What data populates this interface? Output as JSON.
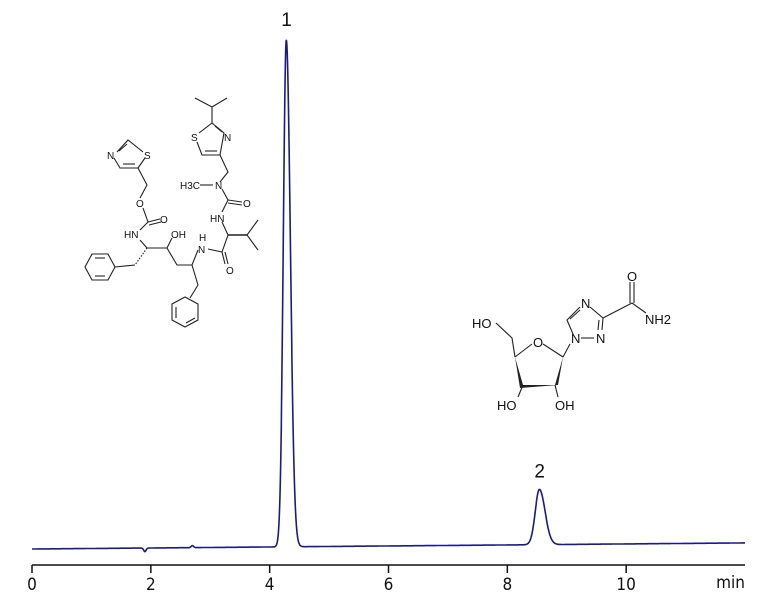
{
  "chart_data": {
    "type": "line",
    "title": "",
    "xlabel": "min",
    "ylabel": "",
    "xlim": [
      0,
      12
    ],
    "x_ticks": [
      0,
      2,
      4,
      6,
      8,
      10
    ],
    "x_tick_labels": [
      "0",
      "2",
      "4",
      "6",
      "8",
      "10"
    ],
    "y_axis_shown": false,
    "grid": false,
    "line_color": "#1a1a8c",
    "baseline": {
      "start": 0.0,
      "end": 1.2
    },
    "peaks": [
      {
        "label": "1",
        "retention_time": 4.28,
        "height": 100,
        "compound": "ritonavir"
      },
      {
        "label": "2",
        "retention_time": 8.54,
        "height": 10.9,
        "compound": "ribavirin"
      }
    ],
    "minor_features": [
      {
        "retention_time": 1.9,
        "height": -0.7
      },
      {
        "retention_time": 2.7,
        "height": 0.4
      }
    ]
  },
  "structures": {
    "ritonavir_labels": [
      "S",
      "N",
      "H3C",
      "N",
      "O",
      "HN",
      "N",
      "H",
      "O",
      "OH",
      "HN",
      "O",
      "O",
      "N",
      "S"
    ],
    "ribavirin_labels": [
      "HO",
      "O",
      "N",
      "N",
      "N",
      "O",
      "NH2",
      "HO",
      "OH"
    ]
  }
}
